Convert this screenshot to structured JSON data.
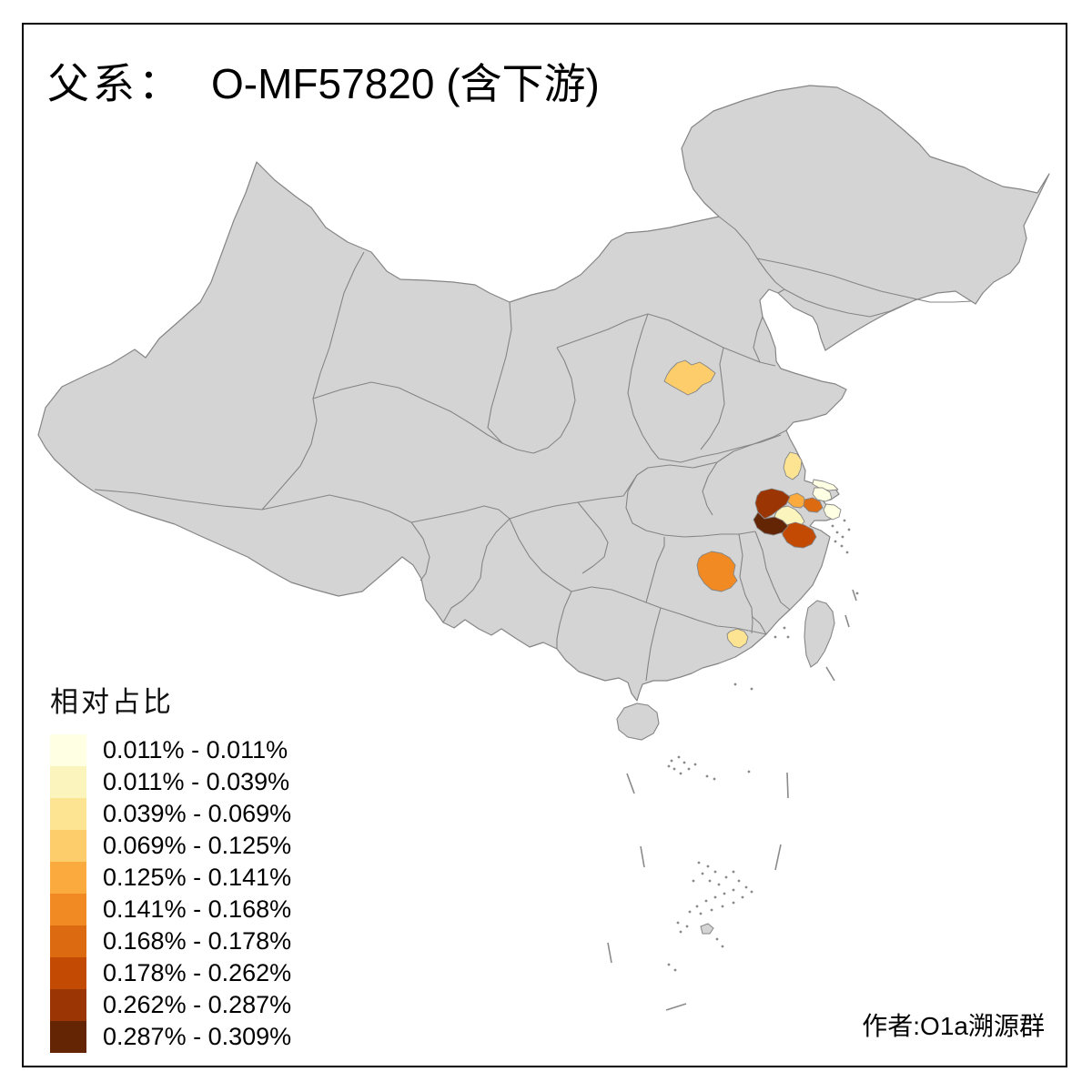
{
  "title": {
    "prefix": "父系：",
    "code": "O-MF57820 (含下游)"
  },
  "legend": {
    "title": "相对占比",
    "classes": [
      {
        "label": "0.011% - 0.011%",
        "color": "#FFFFE3"
      },
      {
        "label": "0.011% - 0.039%",
        "color": "#FBF4BD"
      },
      {
        "label": "0.039% - 0.069%",
        "color": "#FDE492"
      },
      {
        "label": "0.069% - 0.125%",
        "color": "#FDCD6B"
      },
      {
        "label": "0.125% - 0.141%",
        "color": "#FBAB3D"
      },
      {
        "label": "0.141% - 0.168%",
        "color": "#F18A22"
      },
      {
        "label": "0.168% - 0.178%",
        "color": "#DC6A10"
      },
      {
        "label": "0.178% - 0.262%",
        "color": "#C24A02"
      },
      {
        "label": "0.262% - 0.287%",
        "color": "#9B3503"
      },
      {
        "label": "0.287% - 0.309%",
        "color": "#642505"
      }
    ]
  },
  "author": "作者:O1a溯源群",
  "colors": {
    "land": "#d4d4d4",
    "border": "#858585",
    "island_line": "#8a8a8a",
    "frame": "#000000",
    "sea": "#ffffff"
  },
  "regions": [
    {
      "id": "shanxi-central",
      "class_index": 3
    },
    {
      "id": "jiangsu-central",
      "class_index": 2
    },
    {
      "id": "nantong-strip",
      "class_index": 0
    },
    {
      "id": "suzhou",
      "class_index": 0
    },
    {
      "id": "shanghai",
      "class_index": 0
    },
    {
      "id": "hangzhou",
      "class_index": 1
    },
    {
      "id": "huzhou",
      "class_index": 4
    },
    {
      "id": "jiaxing",
      "class_index": 6
    },
    {
      "id": "shaoxing-jinhua",
      "class_index": 7
    },
    {
      "id": "xuancheng",
      "class_index": 8
    },
    {
      "id": "huangshan",
      "class_index": 9
    },
    {
      "id": "hunan-east",
      "class_index": 5
    },
    {
      "id": "guangdong-coastal",
      "class_index": 2
    }
  ]
}
